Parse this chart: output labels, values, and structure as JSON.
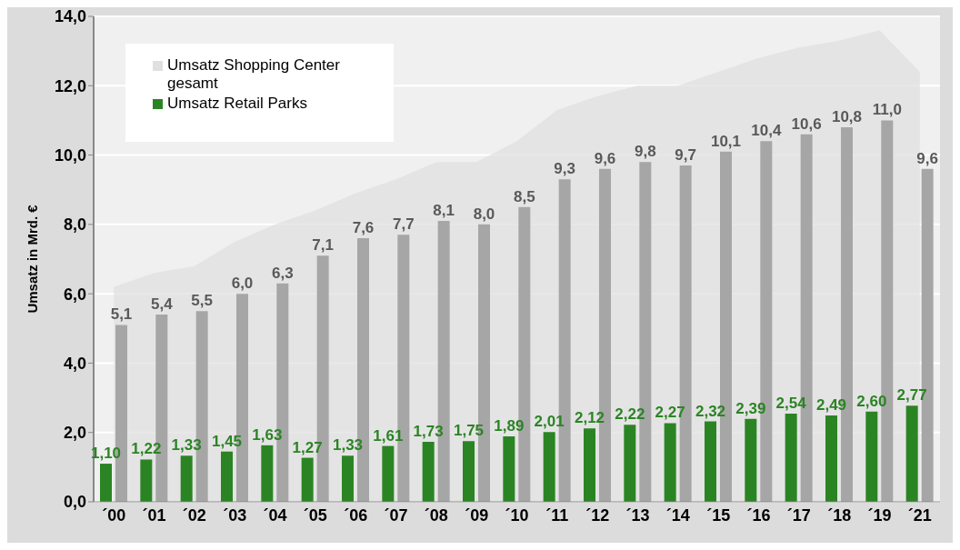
{
  "chart_data": {
    "type": "bar",
    "ylabel": "Umsatz in Mrd. €",
    "categories": [
      "´00",
      "´01",
      "´02",
      "´03",
      "´04",
      "´05",
      "´06",
      "´07",
      "´08",
      "´09",
      "´10",
      "´11",
      "´12",
      "´13",
      "´14",
      "´15",
      "´16",
      "´17",
      "´18",
      "´19",
      "´21"
    ],
    "series": [
      {
        "name": "Umsatz Shopping Center gesamt",
        "type": "area",
        "color": "#e0e0e0",
        "values": [
          6.2,
          6.6,
          6.8,
          7.5,
          8.0,
          8.4,
          8.9,
          9.3,
          9.8,
          9.8,
          10.4,
          11.3,
          11.7,
          12.0,
          12.0,
          12.4,
          12.8,
          13.1,
          13.3,
          13.6,
          12.4
        ]
      },
      {
        "name": "Umsatz Retail Parks",
        "color": "#2b8424",
        "values": [
          1.1,
          1.22,
          1.33,
          1.45,
          1.63,
          1.27,
          1.33,
          1.61,
          1.73,
          1.75,
          1.89,
          2.01,
          2.12,
          2.22,
          2.27,
          2.32,
          2.39,
          2.54,
          2.49,
          2.6,
          2.77
        ],
        "value_labels": [
          "1,10",
          "1,22",
          "1,33",
          "1,45",
          "1,63",
          "1,27",
          "1,33",
          "1,61",
          "1,73",
          "1,75",
          "1,89",
          "2,01",
          "2,12",
          "2,22",
          "2,27",
          "2,32",
          "2,39",
          "2,54",
          "2,49",
          "2,60",
          "2,77"
        ]
      },
      {
        "color": "#a6a6a6",
        "values": [
          5.1,
          5.4,
          5.5,
          6.0,
          6.3,
          7.1,
          7.6,
          7.7,
          8.1,
          8.0,
          8.5,
          9.3,
          9.6,
          9.8,
          9.7,
          10.1,
          10.4,
          10.6,
          10.8,
          11.0,
          9.6
        ],
        "value_labels": [
          "5,1",
          "5,4",
          "5,5",
          "6,0",
          "6,3",
          "7,1",
          "7,6",
          "7,7",
          "8,1",
          "8,0",
          "8,5",
          "9,3",
          "9,6",
          "9,8",
          "9,7",
          "10,1",
          "10,4",
          "10,6",
          "10,8",
          "11,0",
          "9,6"
        ]
      }
    ],
    "ylim": [
      0,
      14
    ],
    "yticks": [
      {
        "value": 0,
        "label": "0,0"
      },
      {
        "value": 2,
        "label": "2,0"
      },
      {
        "value": 4,
        "label": "4,0"
      },
      {
        "value": 6,
        "label": "6,0"
      },
      {
        "value": 8,
        "label": "8,0"
      },
      {
        "value": 10,
        "label": "10,0"
      },
      {
        "value": 12,
        "label": "12,0"
      },
      {
        "value": 14,
        "label": "14,0"
      }
    ],
    "grid": "y",
    "legend": "top left"
  }
}
